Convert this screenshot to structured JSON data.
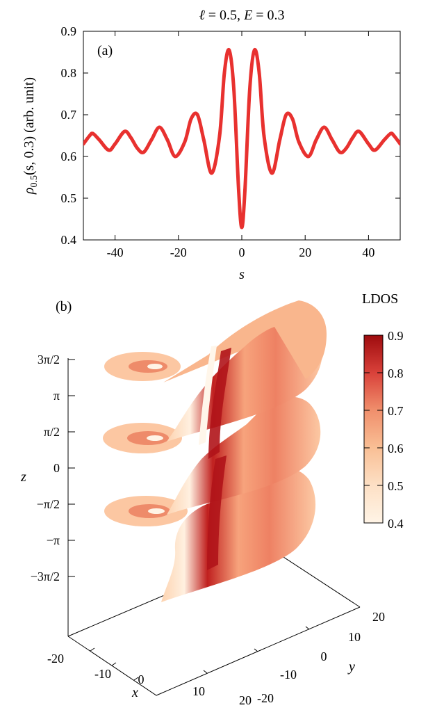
{
  "chart_data": [
    {
      "type": "line",
      "panel_label": "(a)",
      "title": "ℓ = 0.5, E = 0.3",
      "title_parts": {
        "ell": "ℓ",
        "ell_value": " = 0.5, ",
        "E": "E",
        "E_value": " = 0.3"
      },
      "xlabel": "s",
      "ylabel": "ρ0.5(s, 0.3) (arb. unit)",
      "ylabel_parts": {
        "rho": "ρ",
        "sub": "0.5",
        "args": "(s, 0.3) (arb. unit)"
      },
      "xlim": [
        -50,
        50
      ],
      "ylim": [
        0.4,
        0.9
      ],
      "xticks": [
        -40,
        -20,
        0,
        20,
        40
      ],
      "xtick_labels": [
        "-40",
        "-20",
        "0",
        "20",
        "40"
      ],
      "yticks": [
        0.4,
        0.5,
        0.6,
        0.7,
        0.8,
        0.9
      ],
      "ytick_labels": [
        "0.4",
        "0.5",
        "0.6",
        "0.7",
        "0.8",
        "0.9"
      ],
      "series": [
        {
          "color": "#e8312f",
          "x": [
            -50,
            -48,
            -47,
            -45,
            -42,
            -40,
            -37,
            -35,
            -33,
            -31,
            -28.5,
            -26,
            -23.5,
            -21,
            -18,
            -16,
            -14,
            -12,
            -9.5,
            -7,
            -5.5,
            -4,
            -2.5,
            -1,
            0,
            1,
            2.5,
            4,
            5.5,
            7,
            9.5,
            12,
            14,
            16,
            18,
            21,
            23.5,
            26,
            28.5,
            31,
            33,
            35,
            37,
            40,
            42,
            45,
            47,
            48,
            50
          ],
          "y": [
            0.63,
            0.65,
            0.655,
            0.64,
            0.615,
            0.63,
            0.66,
            0.645,
            0.62,
            0.61,
            0.64,
            0.67,
            0.64,
            0.6,
            0.635,
            0.69,
            0.7,
            0.64,
            0.56,
            0.65,
            0.8,
            0.855,
            0.76,
            0.52,
            0.43,
            0.52,
            0.76,
            0.855,
            0.8,
            0.65,
            0.56,
            0.64,
            0.7,
            0.69,
            0.635,
            0.6,
            0.64,
            0.67,
            0.64,
            0.61,
            0.62,
            0.645,
            0.66,
            0.63,
            0.615,
            0.64,
            0.655,
            0.65,
            0.63
          ]
        }
      ]
    },
    {
      "type": "surface3d",
      "panel_label": "(b)",
      "xlabel": "x",
      "ylabel": "y",
      "zlabel": "z",
      "x_ticks": [
        "-20",
        "-10",
        "0",
        "10",
        "20"
      ],
      "y_ticks": [
        "20",
        "10",
        "0",
        "-10",
        "-20"
      ],
      "z_ticks": [
        "3π/2",
        "π",
        "π/2",
        "0",
        "−π/2",
        "−π",
        "−3π/2"
      ],
      "colorbar": {
        "title": "LDOS",
        "ticks": [
          "0.9",
          "0.8",
          "0.7",
          "0.6",
          "0.5",
          "0.4"
        ],
        "min_color": "#fff4e6",
        "max_color": "#9e0b0e"
      }
    }
  ]
}
